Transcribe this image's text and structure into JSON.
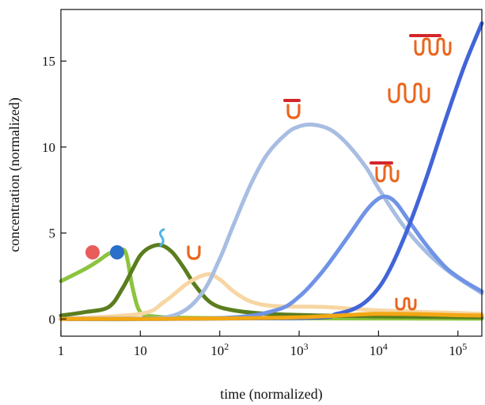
{
  "chart_data": {
    "type": "line",
    "xlabel": "time (normalized)",
    "ylabel": "concentration (normalized)",
    "x_scale": "log",
    "xlim": [
      1,
      200000
    ],
    "ylim": [
      -1,
      18
    ],
    "x_ticks": [
      {
        "value": 1,
        "label": "1"
      },
      {
        "value": 10,
        "label": "10"
      },
      {
        "value": 100,
        "base": "10",
        "exp": "2"
      },
      {
        "value": 1000,
        "base": "10",
        "exp": "3"
      },
      {
        "value": 10000,
        "base": "10",
        "exp": "4"
      },
      {
        "value": 100000,
        "base": "10",
        "exp": "5"
      }
    ],
    "y_ticks": [
      {
        "value": 0,
        "label": "0"
      },
      {
        "value": 5,
        "label": "5"
      },
      {
        "value": 10,
        "label": "10"
      },
      {
        "value": 15,
        "label": "15"
      }
    ],
    "grid": false,
    "legend": "none",
    "series": [
      {
        "color": "#8cc43f",
        "x": [
          1,
          2,
          3,
          4,
          5,
          6.5,
          8,
          10,
          15,
          30,
          100,
          1000,
          10000,
          200000
        ],
        "y": [
          2.2,
          2.9,
          3.4,
          3.8,
          3.85,
          3.9,
          1.8,
          0.4,
          0.15,
          0.08,
          0.05,
          0.04,
          0.03,
          0.02
        ]
      },
      {
        "color": "#5a7d1e",
        "x": [
          1,
          2,
          4,
          6,
          8,
          10,
          13,
          18,
          25,
          35,
          50,
          80,
          150,
          400,
          2000,
          10000,
          200000
        ],
        "y": [
          0.2,
          0.4,
          0.7,
          1.8,
          2.9,
          3.7,
          4.15,
          4.3,
          3.9,
          3.0,
          1.9,
          0.9,
          0.5,
          0.3,
          0.2,
          0.15,
          0.1
        ]
      },
      {
        "color": "#f7d6a3",
        "x": [
          1,
          10,
          20,
          40,
          70,
          100,
          150,
          250,
          500,
          2000,
          10000,
          200000
        ],
        "y": [
          0,
          0.3,
          1.0,
          2.1,
          2.6,
          2.3,
          1.6,
          1.0,
          0.75,
          0.7,
          0.5,
          0.3
        ]
      },
      {
        "color": "#a8bde2",
        "x": [
          1,
          10,
          30,
          60,
          100,
          150,
          250,
          400,
          700,
          1000,
          1500,
          2500,
          4000,
          7000,
          10000,
          20000,
          40000,
          80000,
          200000
        ],
        "y": [
          0,
          0,
          0.3,
          1.5,
          3.5,
          5.5,
          7.9,
          9.6,
          10.8,
          11.2,
          11.3,
          11.0,
          10.2,
          8.8,
          7.6,
          5.5,
          3.9,
          2.7,
          1.5
        ]
      },
      {
        "color": "#6f93e6",
        "x": [
          1,
          100,
          500,
          1000,
          2000,
          4000,
          7000,
          10000,
          13000,
          17000,
          25000,
          40000,
          70000,
          120000,
          200000
        ],
        "y": [
          0,
          0.05,
          0.5,
          1.3,
          2.8,
          4.7,
          6.3,
          7.0,
          7.1,
          6.7,
          5.6,
          4.3,
          3.0,
          2.2,
          1.6
        ]
      },
      {
        "color": "#4165d8",
        "x": [
          1,
          1000,
          3000,
          6000,
          10000,
          15000,
          25000,
          40000,
          70000,
          120000,
          200000
        ],
        "y": [
          0,
          0.05,
          0.3,
          0.8,
          1.8,
          3.2,
          5.6,
          8.2,
          11.6,
          14.7,
          17.2
        ]
      },
      {
        "color": "#f3a712",
        "x": [
          1,
          10,
          100,
          1000,
          5000,
          10000,
          30000,
          100000,
          200000
        ],
        "y": [
          0,
          0,
          0.03,
          0.1,
          0.25,
          0.3,
          0.28,
          0.22,
          0.2
        ]
      }
    ]
  }
}
